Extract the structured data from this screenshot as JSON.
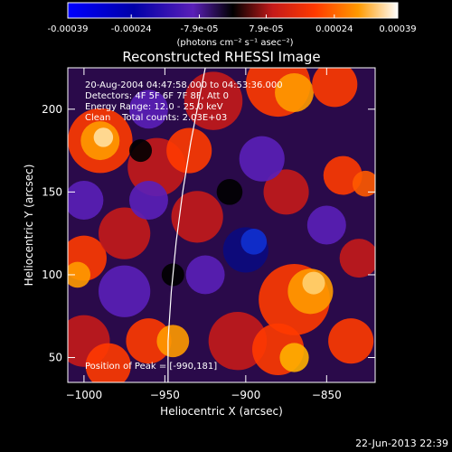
{
  "colorbar": {
    "tick_labels": [
      "-0.00039",
      "-0.00024",
      "-7.9e-05",
      "7.9e-05",
      "0.00024",
      "0.00039"
    ],
    "unit_label": "(photons cm⁻² s⁻¹ asec⁻²)",
    "range": [
      -0.00039,
      0.00039
    ]
  },
  "chart_data": {
    "type": "heatmap",
    "title": "Reconstructed RHESSI Image",
    "xlabel": "Heliocentric X (arcsec)",
    "ylabel": "Heliocentric Y (arcsec)",
    "xlim": [
      -1010,
      -820
    ],
    "ylim": [
      35,
      225
    ],
    "xticks": [
      -1000,
      -950,
      -900,
      -850
    ],
    "xtick_labels": [
      "−1000",
      "−950",
      "−900",
      "−850"
    ],
    "yticks": [
      50,
      100,
      150,
      200
    ],
    "ytick_labels": [
      "50",
      "100",
      "150",
      "200"
    ],
    "limb_curve": [
      [
        -948,
        35
      ],
      [
        -948,
        60
      ],
      [
        -946,
        90
      ],
      [
        -943,
        120
      ],
      [
        -939,
        150
      ],
      [
        -934,
        180
      ],
      [
        -928,
        210
      ],
      [
        -925,
        225
      ]
    ],
    "annotations": [
      "20-Aug-2004 04:47:58.000 to 04:53:36.000",
      "Detectors: 4F 5F 6F 7F 8F, Att 0",
      "Energy Range: 12.0 - 25.0 keV",
      "Clean    Total counts: 2.03E+03"
    ],
    "peak_label": "Position of Peak = [-990,181]",
    "peak": [
      -990,
      181
    ]
  },
  "footer": {
    "date": "22-Jun-2013 22:39"
  }
}
